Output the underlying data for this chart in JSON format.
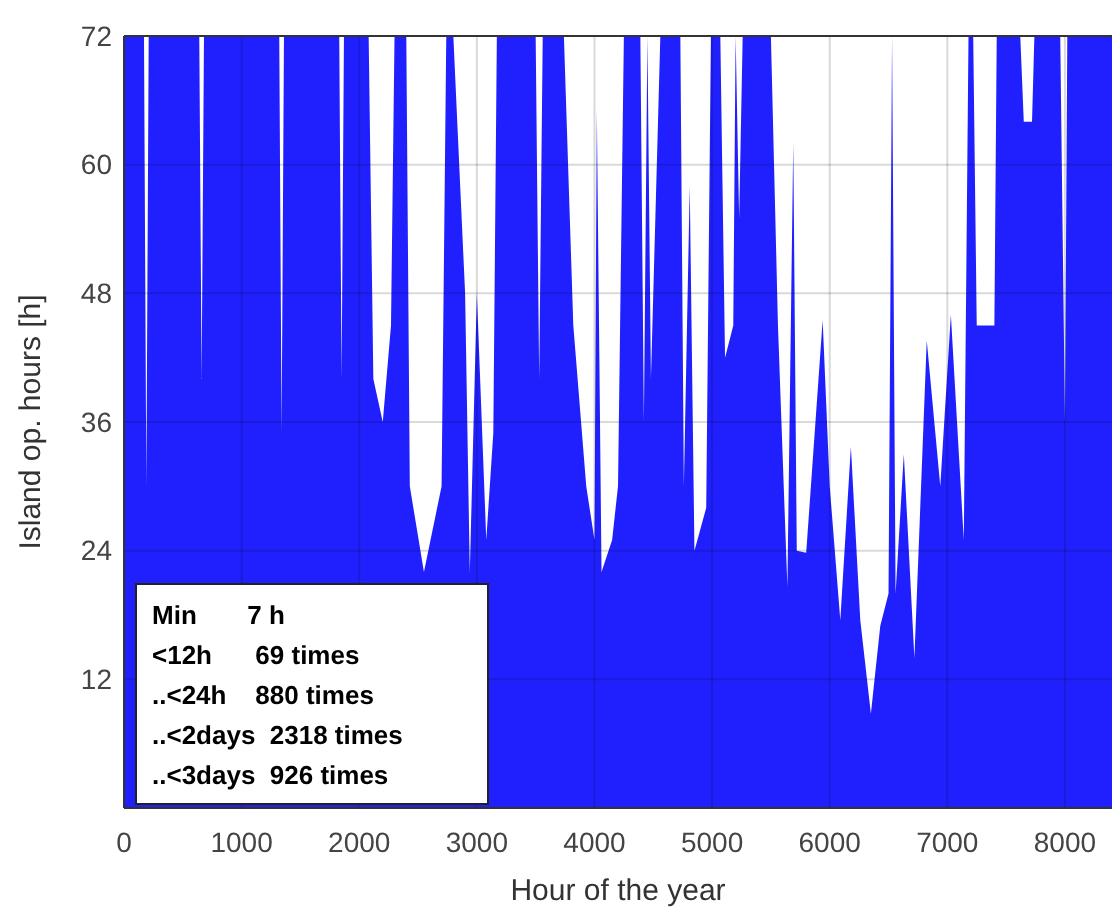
{
  "chart_data": {
    "type": "area",
    "xlabel": "Hour of the year",
    "ylabel": "Island op. hours [h]",
    "xlim": [
      0,
      8400
    ],
    "xticks": [
      0,
      1000,
      2000,
      3000,
      4000,
      5000,
      6000,
      7000,
      8000
    ],
    "ylim": [
      0,
      72
    ],
    "yticks": [
      12,
      24,
      36,
      48,
      60,
      72
    ],
    "grid": true,
    "annotations": [
      "Min       7 h",
      "<12h      69 times",
      "..<24h    880 times",
      "..<2days  2318 times",
      "..<3days  926 times"
    ],
    "series": [
      {
        "color": "#2020ff",
        "x": [
          0,
          170,
          190,
          210,
          640,
          660,
          680,
          1320,
          1340,
          1360,
          1830,
          1850,
          1870,
          2080,
          2120,
          2200,
          2270,
          2300,
          2400,
          2430,
          2550,
          2700,
          2740,
          2800,
          2900,
          2940,
          3000,
          3080,
          3140,
          3170,
          3500,
          3530,
          3560,
          3740,
          3820,
          3930,
          4000,
          4020,
          4060,
          4150,
          4200,
          4250,
          4390,
          4420,
          4450,
          4480,
          4560,
          4730,
          4760,
          4810,
          4850,
          4950,
          4990,
          5070,
          5110,
          5180,
          5200,
          5230,
          5260,
          5500,
          5560,
          5640,
          5690,
          5720,
          5800,
          5940,
          6000,
          6090,
          6180,
          6260,
          6350,
          6430,
          6500,
          6530,
          6560,
          6630,
          6720,
          6825,
          6940,
          7030,
          7140,
          7180,
          7220,
          7250,
          7400,
          7420,
          7620,
          7650,
          7720,
          7740,
          7960,
          8000,
          8020,
          8400
        ],
        "values": [
          72,
          72,
          30,
          72,
          72,
          40,
          72,
          72,
          35,
          72,
          72,
          40,
          72,
          72,
          40,
          36,
          45,
          72,
          72,
          30,
          22,
          30,
          72,
          72,
          48,
          22,
          48,
          25,
          35,
          72,
          72,
          40,
          72,
          72,
          45,
          30,
          25,
          65,
          22,
          25,
          30,
          72,
          72,
          36,
          72,
          40,
          72,
          72,
          30,
          58,
          24,
          28,
          72,
          72,
          42,
          45,
          72,
          55,
          72,
          72,
          45,
          20.6,
          62,
          24,
          23.8,
          45.5,
          30,
          17.5,
          33.7,
          17.5,
          8.8,
          17,
          20,
          72,
          20,
          33,
          14,
          43.6,
          30,
          46,
          25,
          72,
          72,
          45,
          45,
          72,
          72,
          64,
          64,
          72,
          72,
          36,
          72,
          72
        ]
      }
    ]
  }
}
